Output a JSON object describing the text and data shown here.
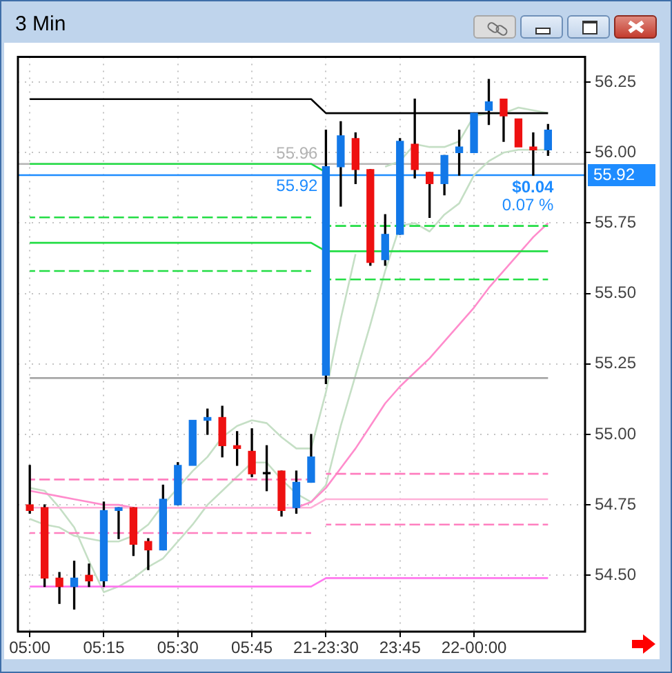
{
  "chart_data": {
    "type": "candlestick",
    "title": "3 Min",
    "categories": [
      "05:00",
      null,
      null,
      null,
      null,
      "05:15",
      null,
      null,
      null,
      null,
      "05:30",
      null,
      null,
      null,
      null,
      "05:45",
      null,
      null,
      null,
      null,
      "21-23:30",
      null,
      null,
      null,
      null,
      "23:45",
      null,
      null,
      null,
      null,
      "22-00:00",
      null,
      null,
      null,
      null,
      null
    ],
    "ohlc": [
      [
        54.75,
        54.89,
        54.72,
        54.73
      ],
      [
        54.74,
        54.75,
        54.46,
        54.49
      ],
      [
        54.49,
        54.51,
        54.4,
        54.46
      ],
      [
        54.46,
        54.55,
        54.38,
        54.49
      ],
      [
        54.5,
        54.54,
        54.46,
        54.48
      ],
      [
        54.48,
        54.76,
        54.46,
        54.73
      ],
      [
        54.73,
        54.74,
        54.63,
        54.74
      ],
      [
        54.74,
        54.74,
        54.57,
        54.61
      ],
      [
        54.62,
        54.63,
        54.52,
        54.59
      ],
      [
        54.59,
        54.82,
        54.59,
        54.77
      ],
      [
        54.75,
        54.9,
        54.75,
        54.89
      ],
      [
        54.89,
        55.05,
        54.89,
        55.05
      ],
      [
        55.05,
        55.09,
        55.0,
        55.06
      ],
      [
        55.06,
        55.1,
        54.92,
        54.96
      ],
      [
        54.96,
        55.01,
        54.89,
        54.95
      ],
      [
        54.94,
        55.02,
        54.85,
        54.86
      ],
      [
        54.86,
        54.96,
        54.8,
        54.86
      ],
      [
        54.87,
        54.87,
        54.71,
        54.73
      ],
      [
        54.74,
        54.87,
        54.72,
        54.83
      ],
      [
        54.83,
        55.0,
        54.83,
        54.92
      ],
      [
        55.21,
        56.08,
        55.18,
        55.95
      ],
      [
        55.95,
        56.11,
        55.81,
        56.06
      ],
      [
        56.05,
        56.07,
        55.89,
        55.94
      ],
      [
        55.94,
        55.94,
        55.6,
        55.61
      ],
      [
        55.62,
        55.78,
        55.6,
        55.71
      ],
      [
        55.71,
        56.05,
        55.71,
        56.04
      ],
      [
        56.03,
        56.19,
        55.91,
        55.94
      ],
      [
        55.93,
        55.93,
        55.77,
        55.89
      ],
      [
        55.89,
        55.99,
        55.85,
        55.99
      ],
      [
        56.0,
        56.08,
        55.92,
        56.02
      ],
      [
        56.0,
        56.14,
        56.0,
        56.14
      ],
      [
        56.15,
        56.26,
        56.1,
        56.18
      ],
      [
        56.19,
        56.19,
        56.04,
        56.13
      ],
      [
        56.12,
        56.12,
        56.02,
        56.02
      ],
      [
        56.02,
        56.07,
        55.92,
        56.01
      ],
      [
        56.01,
        56.1,
        55.99,
        56.08
      ]
    ],
    "colors": [
      "#ee1111",
      "#ee1111",
      "#ee1111",
      "#1278e8",
      "#ee1111",
      "#1278e8",
      "#1278e8",
      "#ee1111",
      "#ee1111",
      "#1278e8",
      "#1278e8",
      "#1278e8",
      "#1278e8",
      "#ee1111",
      "#ee1111",
      "#ee1111",
      "#000000",
      "#ee1111",
      "#1278e8",
      "#1278e8",
      "#1278e8",
      "#1278e8",
      "#ee1111",
      "#ee1111",
      "#1278e8",
      "#1278e8",
      "#ee1111",
      "#ee1111",
      "#1278e8",
      "#1278e8",
      "#1278e8",
      "#1278e8",
      "#ee1111",
      "#ee1111",
      "#ee1111",
      "#1278e8"
    ],
    "series": [
      {
        "type": "line",
        "color": "#000000",
        "values": [
          56.19,
          56.19,
          56.19,
          56.19,
          56.19,
          56.19,
          56.19,
          56.19,
          56.19,
          56.19,
          56.19,
          56.19,
          56.19,
          56.19,
          56.19,
          56.19,
          56.19,
          56.19,
          56.19,
          56.19,
          56.14,
          56.14,
          56.14,
          56.14,
          56.14,
          56.14,
          56.14,
          56.14,
          56.14,
          56.14,
          56.14,
          56.14,
          56.14,
          56.14,
          56.14,
          56.14
        ]
      },
      {
        "type": "line",
        "color": "#22dd44",
        "values": [
          55.96,
          55.96,
          55.96,
          55.96,
          55.96,
          55.96,
          55.96,
          55.96,
          55.96,
          55.96,
          55.96,
          55.96,
          55.96,
          55.96,
          55.96,
          55.96,
          55.96,
          55.96,
          55.96,
          55.96,
          55.93,
          null,
          null,
          null,
          null,
          null,
          null,
          null,
          null,
          null,
          null,
          null,
          null,
          null,
          null,
          null
        ]
      },
      {
        "type": "line",
        "color": "#22dd44",
        "line_style": "dashed",
        "values": [
          55.77,
          55.77,
          55.77,
          55.77,
          55.77,
          55.77,
          55.77,
          55.77,
          55.77,
          55.77,
          55.77,
          55.77,
          55.77,
          55.77,
          55.77,
          55.77,
          55.77,
          55.77,
          55.77,
          55.77,
          null,
          null,
          null,
          null,
          null,
          null,
          null,
          null,
          null,
          null,
          null,
          null,
          null,
          null,
          null,
          null
        ]
      },
      {
        "type": "line",
        "color": "#22dd44",
        "line_style": "dashed",
        "values": [
          null,
          null,
          null,
          null,
          null,
          null,
          null,
          null,
          null,
          null,
          null,
          null,
          null,
          null,
          null,
          null,
          null,
          null,
          null,
          null,
          55.74,
          55.74,
          55.74,
          55.74,
          55.74,
          55.74,
          55.74,
          55.74,
          55.74,
          55.74,
          55.74,
          55.74,
          55.74,
          55.74,
          55.74,
          55.74
        ]
      },
      {
        "type": "line",
        "color": "#22dd44",
        "values": [
          55.68,
          55.68,
          55.68,
          55.68,
          55.68,
          55.68,
          55.68,
          55.68,
          55.68,
          55.68,
          55.68,
          55.68,
          55.68,
          55.68,
          55.68,
          55.68,
          55.68,
          55.68,
          55.68,
          55.68,
          55.65,
          55.65,
          55.65,
          55.65,
          55.65,
          55.65,
          55.65,
          55.65,
          55.65,
          55.65,
          55.65,
          55.65,
          55.65,
          55.65,
          55.65,
          55.65
        ]
      },
      {
        "type": "line",
        "color": "#22dd44",
        "line_style": "dashed",
        "values": [
          55.58,
          55.58,
          55.58,
          55.58,
          55.58,
          55.58,
          55.58,
          55.58,
          55.58,
          55.58,
          55.58,
          55.58,
          55.58,
          55.58,
          55.58,
          55.58,
          55.58,
          55.58,
          55.58,
          55.58,
          null,
          null,
          null,
          null,
          null,
          null,
          null,
          null,
          null,
          null,
          null,
          null,
          null,
          null,
          null,
          null
        ]
      },
      {
        "type": "line",
        "color": "#22dd44",
        "line_style": "dashed",
        "values": [
          null,
          null,
          null,
          null,
          null,
          null,
          null,
          null,
          null,
          null,
          null,
          null,
          null,
          null,
          null,
          null,
          null,
          null,
          null,
          null,
          55.55,
          55.55,
          55.55,
          55.55,
          55.55,
          55.55,
          55.55,
          55.55,
          55.55,
          55.55,
          55.55,
          55.55,
          55.55,
          55.55,
          55.55,
          55.55
        ]
      },
      {
        "type": "line",
        "color": "#a0a0a0",
        "values": [
          55.2,
          55.2,
          55.2,
          55.2,
          55.2,
          55.2,
          55.2,
          55.2,
          55.2,
          55.2,
          55.2,
          55.2,
          55.2,
          55.2,
          55.2,
          55.2,
          55.2,
          55.2,
          55.2,
          55.2,
          55.2,
          55.2,
          55.2,
          55.2,
          55.2,
          55.2,
          55.2,
          55.2,
          55.2,
          55.2,
          55.2,
          55.2,
          55.2,
          55.2,
          55.2,
          55.2
        ]
      },
      {
        "type": "line",
        "color": "#ff7fbf",
        "line_style": "dashed",
        "values": [
          54.84,
          54.84,
          54.84,
          54.84,
          54.84,
          54.84,
          54.84,
          54.84,
          54.84,
          54.84,
          54.84,
          54.84,
          54.84,
          54.84,
          54.84,
          54.84,
          54.84,
          54.84,
          54.84,
          54.84,
          null,
          null,
          null,
          null,
          null,
          null,
          null,
          null,
          null,
          null,
          null,
          null,
          null,
          null,
          null,
          null
        ]
      },
      {
        "type": "line",
        "color": "#ff7fbf",
        "line_style": "dashed",
        "values": [
          null,
          null,
          null,
          null,
          null,
          null,
          null,
          null,
          null,
          null,
          null,
          null,
          null,
          null,
          null,
          null,
          null,
          null,
          null,
          null,
          54.86,
          54.86,
          54.86,
          54.86,
          54.86,
          54.86,
          54.86,
          54.86,
          54.86,
          54.86,
          54.86,
          54.86,
          54.86,
          54.86,
          54.86,
          54.86
        ]
      },
      {
        "type": "line",
        "color": "#ffb0d8",
        "values": [
          54.74,
          54.74,
          54.74,
          54.74,
          54.74,
          54.74,
          54.74,
          54.74,
          54.74,
          54.74,
          54.74,
          54.74,
          54.74,
          54.74,
          54.74,
          54.74,
          54.74,
          54.74,
          54.74,
          54.74,
          54.77,
          54.77,
          54.77,
          54.77,
          54.77,
          54.77,
          54.77,
          54.77,
          54.77,
          54.77,
          54.77,
          54.77,
          54.77,
          54.77,
          54.77,
          54.77
        ]
      },
      {
        "type": "line",
        "color": "#ff7fbf",
        "line_style": "dashed",
        "values": [
          54.65,
          54.65,
          54.65,
          54.65,
          54.65,
          54.65,
          54.65,
          54.65,
          54.65,
          54.65,
          54.65,
          54.65,
          54.65,
          54.65,
          54.65,
          54.65,
          54.65,
          54.65,
          54.65,
          54.65,
          null,
          null,
          null,
          null,
          null,
          null,
          null,
          null,
          null,
          null,
          null,
          null,
          null,
          null,
          null,
          null
        ]
      },
      {
        "type": "line",
        "color": "#ff7fbf",
        "line_style": "dashed",
        "values": [
          null,
          null,
          null,
          null,
          null,
          null,
          null,
          null,
          null,
          null,
          null,
          null,
          null,
          null,
          null,
          null,
          null,
          null,
          null,
          null,
          54.68,
          54.68,
          54.68,
          54.68,
          54.68,
          54.68,
          54.68,
          54.68,
          54.68,
          54.68,
          54.68,
          54.68,
          54.68,
          54.68,
          54.68,
          54.68
        ]
      },
      {
        "type": "line",
        "color": "#ff77ee",
        "values": [
          54.46,
          54.46,
          54.46,
          54.46,
          54.46,
          54.46,
          54.46,
          54.46,
          54.46,
          54.46,
          54.46,
          54.46,
          54.46,
          54.46,
          54.46,
          54.46,
          54.46,
          54.46,
          54.46,
          54.46,
          54.49,
          54.49,
          54.49,
          54.49,
          54.49,
          54.49,
          54.49,
          54.49,
          54.49,
          54.49,
          54.49,
          54.49,
          54.49,
          54.49,
          54.49,
          54.49
        ]
      },
      {
        "type": "line",
        "color": "#ff8ccc",
        "values": [
          54.8,
          54.79,
          54.78,
          54.77,
          54.76,
          54.75,
          54.75,
          54.74,
          54.74,
          54.74,
          54.74,
          54.74,
          54.74,
          54.74,
          54.74,
          54.74,
          54.74,
          54.74,
          54.74,
          54.76,
          54.81,
          54.88,
          54.95,
          55.03,
          55.11,
          55.17,
          55.22,
          55.27,
          55.33,
          55.39,
          55.45,
          55.52,
          55.58,
          55.64,
          55.7,
          55.75
        ]
      },
      {
        "type": "line",
        "color": "#c5dfc5",
        "values": [
          54.7,
          54.68,
          54.67,
          54.64,
          54.63,
          54.62,
          54.62,
          54.64,
          54.68,
          54.75,
          54.81,
          54.87,
          54.92,
          54.99,
          55.03,
          55.05,
          55.04,
          54.99,
          54.95,
          54.95,
          55.15,
          55.41,
          55.64,
          null,
          55.95,
          55.97,
          56.03,
          56.02,
          56.02,
          56.04,
          56.13,
          56.14,
          56.14,
          56.16,
          56.15,
          56.14
        ]
      },
      {
        "type": "line",
        "color": "#c5dfc5",
        "values": [
          54.81,
          54.8,
          54.74,
          54.67,
          54.55,
          54.44,
          54.46,
          54.49,
          54.53,
          54.56,
          54.62,
          54.68,
          54.75,
          54.8,
          54.85,
          54.9,
          54.9,
          54.84,
          54.79,
          54.76,
          54.82,
          55.03,
          55.21,
          55.39,
          55.58,
          55.74,
          55.75,
          55.72,
          55.78,
          55.82,
          55.92,
          55.97,
          56.0,
          56.01,
          56.01,
          56.01
        ]
      }
    ],
    "ref_lines": [
      {
        "axis": "y",
        "value": 55.96,
        "label": "55.96",
        "color": "#b4b4b4"
      },
      {
        "axis": "y",
        "value": 55.92,
        "label": "55.92",
        "color": "#1e8cff"
      }
    ],
    "annotations": [
      "$0.04",
      "0.07 %"
    ],
    "ylim": [
      54.3,
      56.34
    ],
    "yticks": [
      {
        "value": 54.5,
        "label": "54.50"
      },
      54.75,
      {
        "value": 55,
        "label": "55.00"
      },
      55.25,
      {
        "value": 55.5,
        "label": "55.50"
      },
      55.75,
      {
        "value": 56,
        "label": "56.00"
      },
      56.25
    ],
    "grid": true
  }
}
